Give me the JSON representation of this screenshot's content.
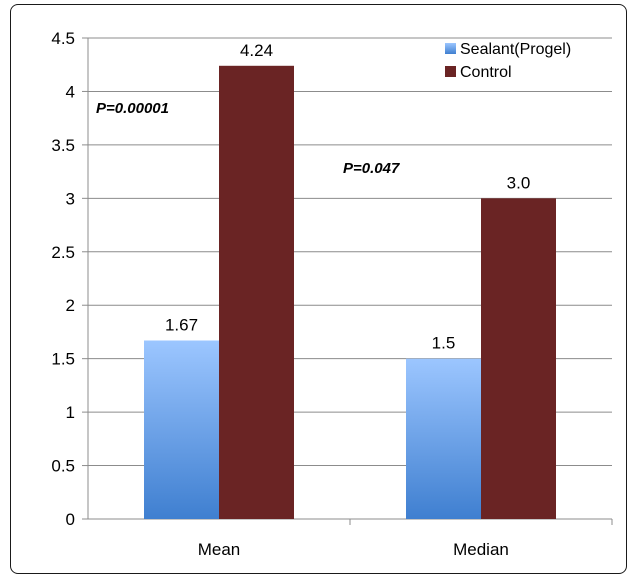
{
  "chart_data": {
    "type": "bar",
    "categories": [
      "Mean",
      "Median"
    ],
    "series": [
      {
        "name": "Sealant(Progel)",
        "values": [
          1.67,
          1.5
        ],
        "labels": [
          "1.67",
          "1.5"
        ],
        "color": "#7fb0f0"
      },
      {
        "name": "Control",
        "values": [
          4.24,
          3.0
        ],
        "labels": [
          "4.24",
          "3.0"
        ],
        "color": "#6a2424"
      }
    ],
    "yticks": [
      "0",
      "0.5",
      "1",
      "1.5",
      "2",
      "2.5",
      "3",
      "3.5",
      "4",
      "4.5"
    ],
    "ylim": [
      0,
      4.5
    ],
    "grid": true,
    "legend_position": "top-right",
    "annotations": [
      "P=0.00001",
      "P=0.047"
    ]
  }
}
